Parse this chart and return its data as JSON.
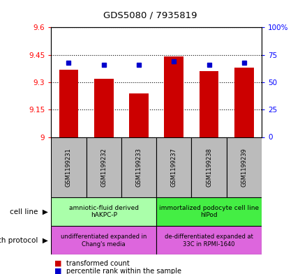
{
  "title": "GDS5080 / 7935819",
  "samples": [
    "GSM1199231",
    "GSM1199232",
    "GSM1199233",
    "GSM1199237",
    "GSM1199238",
    "GSM1199239"
  ],
  "red_values": [
    9.37,
    9.32,
    9.24,
    9.44,
    9.36,
    9.38
  ],
  "blue_values_pct": [
    68,
    66,
    66,
    69,
    66,
    68
  ],
  "y_min": 9.0,
  "y_max": 9.6,
  "y_ticks": [
    9.0,
    9.15,
    9.3,
    9.45,
    9.6
  ],
  "y_tick_labels": [
    "9",
    "9.15",
    "9.3",
    "9.45",
    "9.6"
  ],
  "y2_ticks": [
    0,
    25,
    50,
    75,
    100
  ],
  "y2_tick_labels": [
    "0",
    "25",
    "50",
    "75",
    "100%"
  ],
  "cell_line_labels": [
    "amniotic-fluid derived\nhAKPC-P",
    "immortalized podocyte cell line\nhIPod"
  ],
  "cell_line_colors": [
    "#aaffaa",
    "#44ee44"
  ],
  "growth_protocol_labels": [
    "undifferentiated expanded in\nChang's media",
    "de-differentiated expanded at\n33C in RPMI-1640"
  ],
  "growth_protocol_color": "#dd66dd",
  "legend_red": "transformed count",
  "legend_blue": "percentile rank within the sample",
  "bar_color": "#cc0000",
  "dot_color": "#0000cc",
  "bg_color": "#ffffff",
  "sample_box_color": "#bbbbbb"
}
